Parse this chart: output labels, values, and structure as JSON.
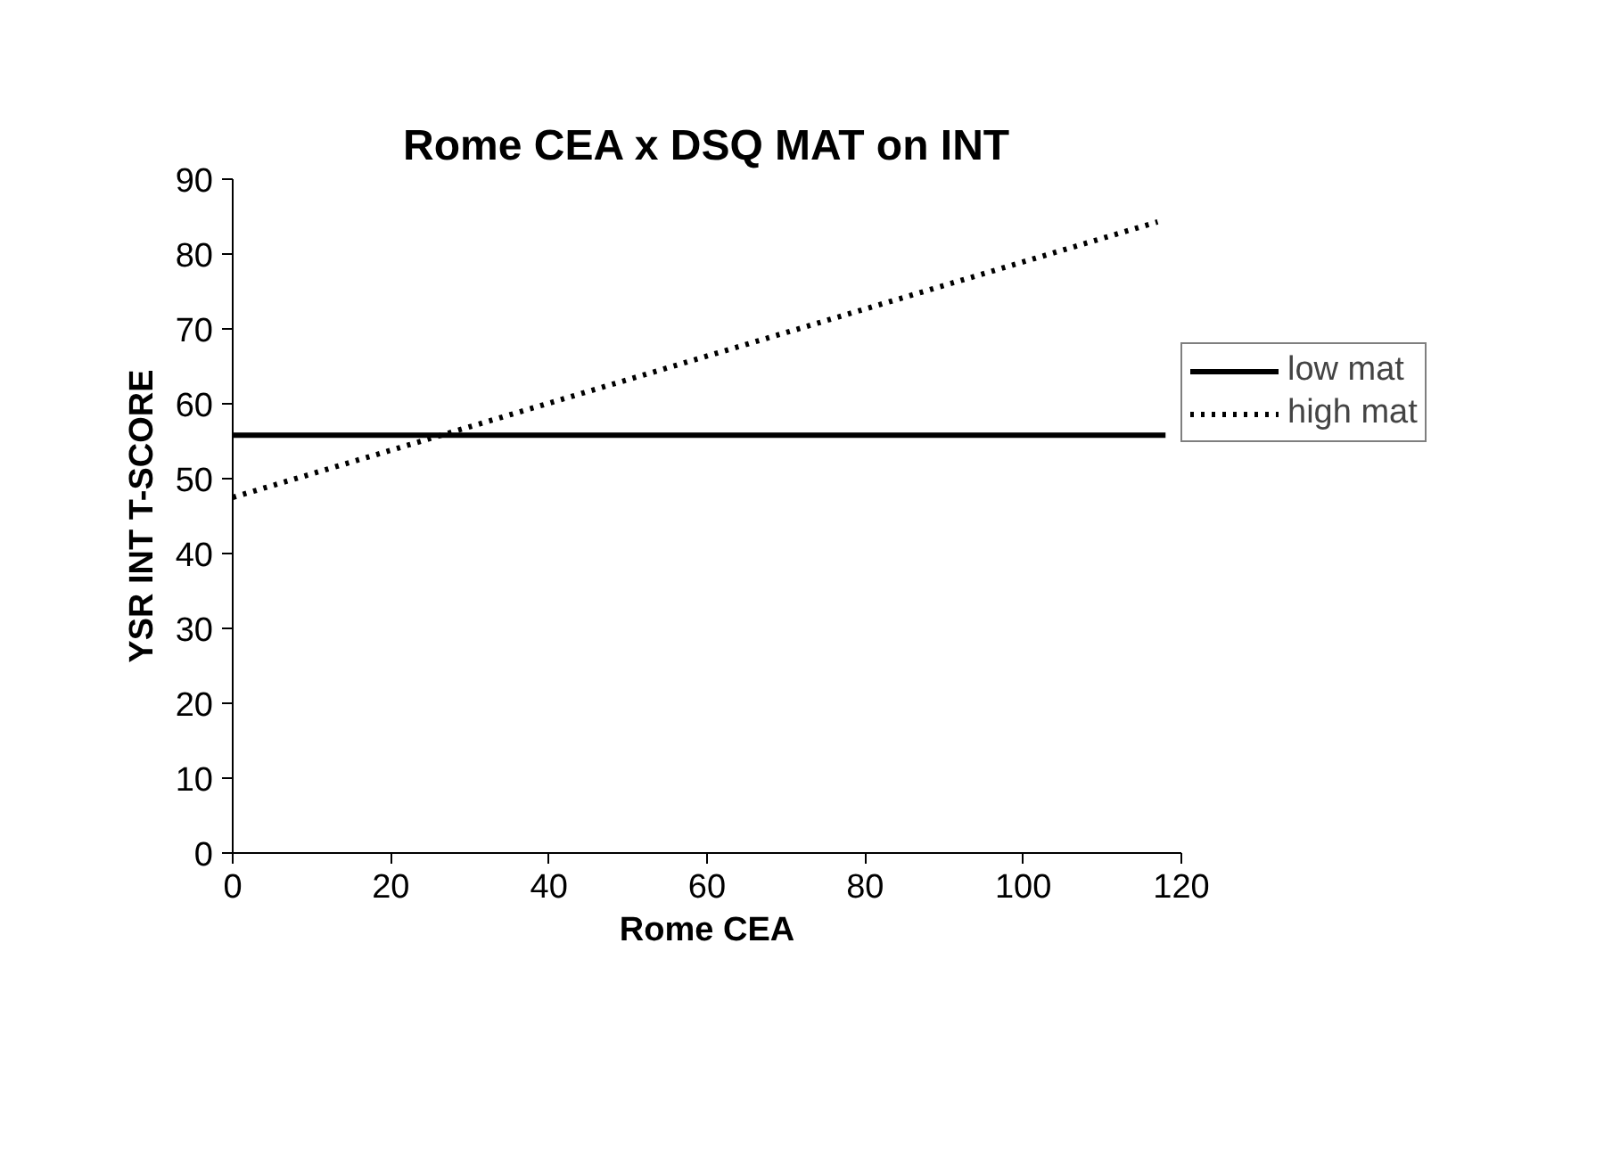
{
  "chart_data": {
    "type": "line",
    "title": "Rome CEA x DSQ MAT on INT",
    "xlabel": "Rome CEA",
    "ylabel": "YSR INT T-SCORE",
    "x": [
      0,
      118
    ],
    "series": [
      {
        "name": "low mat",
        "color": "#000000",
        "values": [
          55.8,
          55.8
        ],
        "line_style": "solid"
      },
      {
        "name": "high mat",
        "color": "#000000",
        "x": [
          0,
          117
        ],
        "values": [
          47.5,
          84.3
        ],
        "line_style": "dotted"
      }
    ],
    "xlim": [
      0,
      120
    ],
    "xticks": [
      0,
      20,
      40,
      60,
      80,
      100,
      120
    ],
    "ylim": [
      0,
      90
    ],
    "yticks": [
      0,
      10,
      20,
      30,
      40,
      50,
      60,
      70,
      80,
      90
    ],
    "grid": false,
    "legend": "right",
    "marker": "none"
  }
}
